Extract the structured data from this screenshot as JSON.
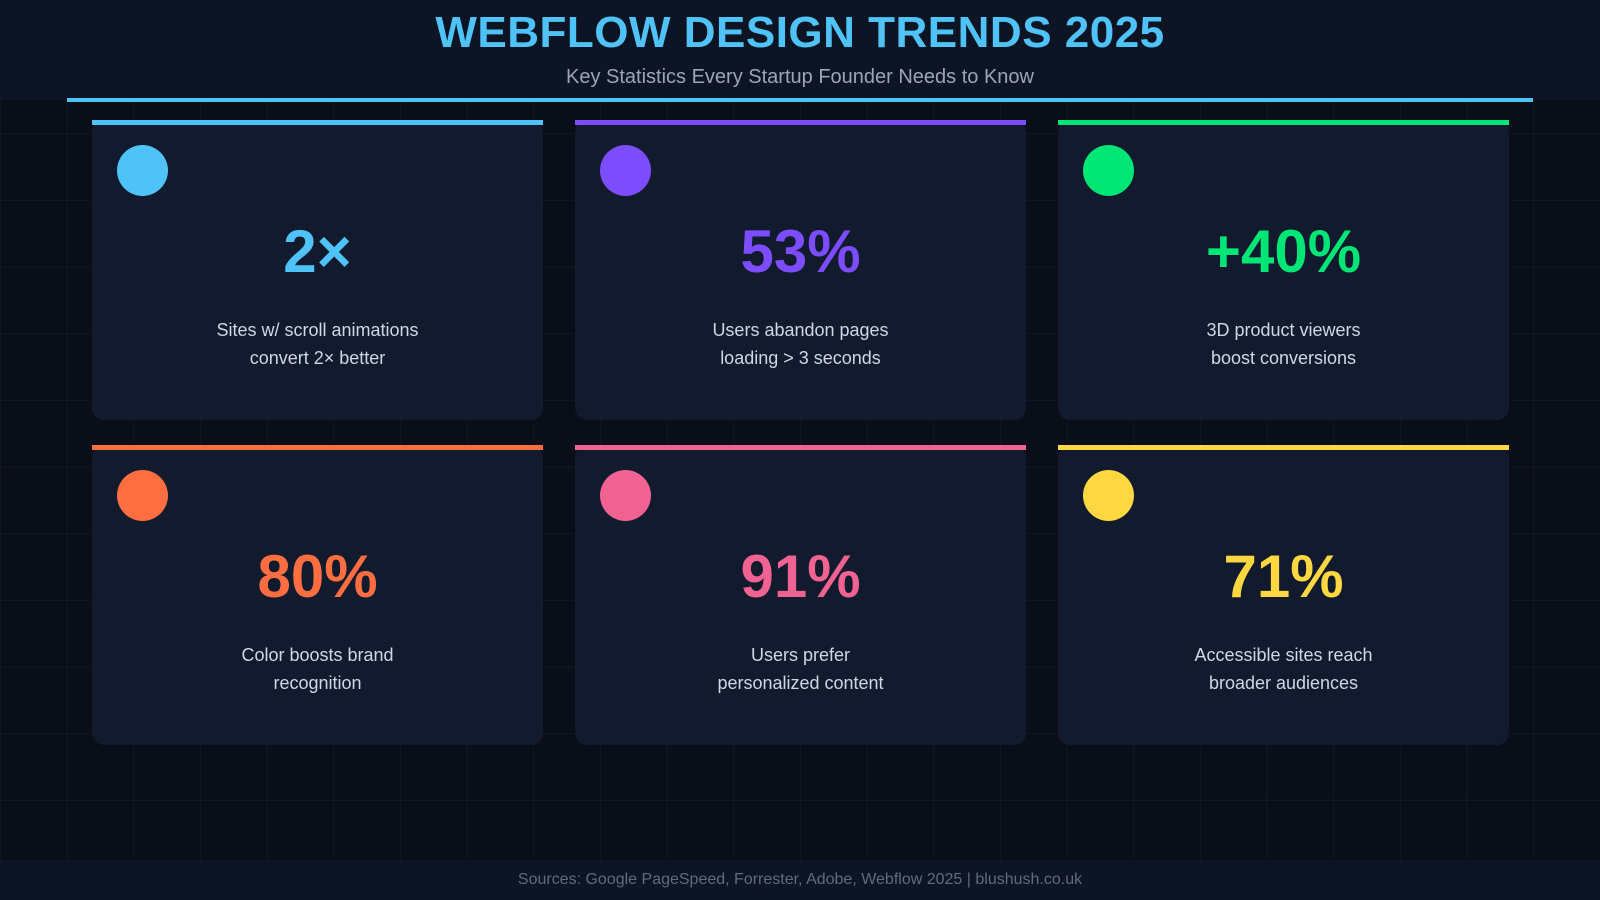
{
  "header": {
    "title": "WEBFLOW DESIGN TRENDS 2025",
    "subtitle": "Key Statistics Every Startup Founder Needs to Know",
    "accent_color": "#4fc3f7"
  },
  "cards": [
    {
      "value": "2×",
      "desc_line1": "Sites w/ scroll animations",
      "desc_line2": "convert 2× better",
      "color": "#4fc3f7"
    },
    {
      "value": "53%",
      "desc_line1": "Users abandon pages",
      "desc_line2": "loading > 3 seconds",
      "color": "#7c4dff"
    },
    {
      "value": "+40%",
      "desc_line1": "3D product viewers",
      "desc_line2": "boost conversions",
      "color": "#00e676"
    },
    {
      "value": "80%",
      "desc_line1": "Color boosts brand",
      "desc_line2": "recognition",
      "color": "#ff6e40"
    },
    {
      "value": "91%",
      "desc_line1": "Users prefer",
      "desc_line2": "personalized content",
      "color": "#f06292"
    },
    {
      "value": "71%",
      "desc_line1": "Accessible sites reach",
      "desc_line2": "broader audiences",
      "color": "#ffd740"
    }
  ],
  "footer": {
    "text": "Sources: Google PageSpeed, Forrester, Adobe, Webflow 2025 | blushush.co.uk"
  }
}
